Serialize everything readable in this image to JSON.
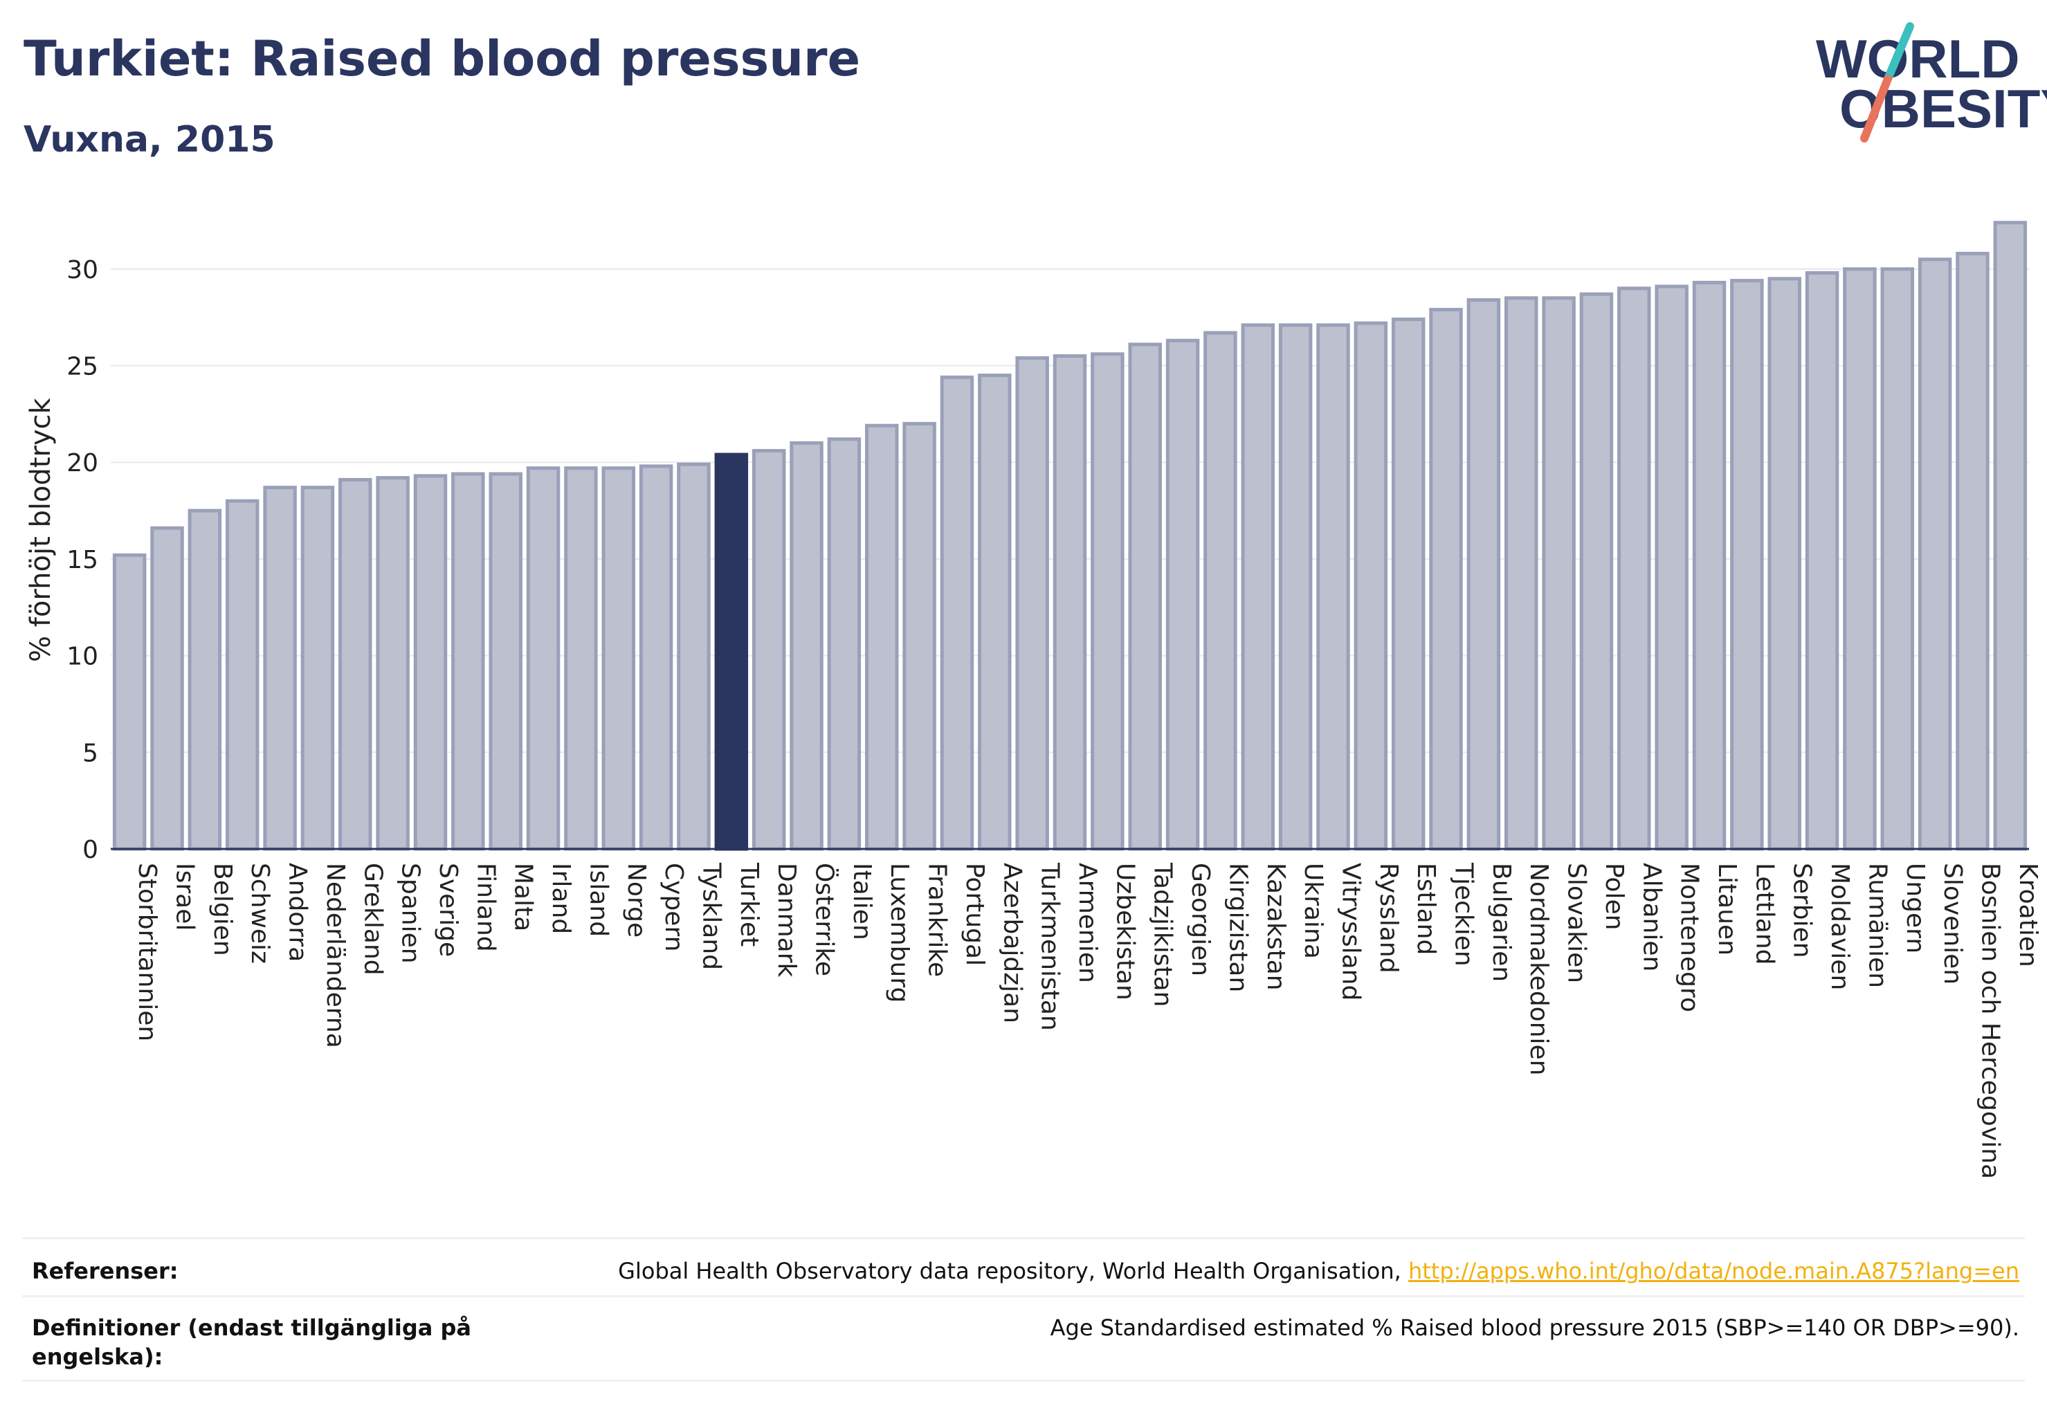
{
  "header": {
    "title": "Turkiet: Raised blood pressure",
    "subtitle": "Vuxna, 2015"
  },
  "logo": {
    "line1": "WORLD",
    "line2": "OBESITY"
  },
  "colors": {
    "highlight": "#2a3560",
    "bar_fill": "#bcc0cf",
    "bar_stroke": "#9aa0b8",
    "grid": "#e6e8ee",
    "logo_slash_top": "#3bbfbf",
    "logo_slash_bottom": "#e9735c",
    "link": "#f2b10e"
  },
  "chart_data": {
    "type": "bar",
    "ylabel": "% förhöjt blodtryck",
    "ylim": [
      0,
      33
    ],
    "yticks": [
      0,
      5,
      10,
      15,
      20,
      25,
      30
    ],
    "grid": true,
    "highlight": "Turkiet",
    "categories": [
      "Storbritannien",
      "Israel",
      "Belgien",
      "Schweiz",
      "Andorra",
      "Nederländerna",
      "Grekland",
      "Spanien",
      "Sverige",
      "Finland",
      "Malta",
      "Irland",
      "Island",
      "Norge",
      "Cypern",
      "Tyskland",
      "Turkiet",
      "Danmark",
      "Österrike",
      "Italien",
      "Luxemburg",
      "Frankrike",
      "Portugal",
      "Azerbajdzjan",
      "Turkmenistan",
      "Armenien",
      "Uzbekistan",
      "Tadzjikistan",
      "Georgien",
      "Kirgizistan",
      "Kazakstan",
      "Ukraina",
      "Vitryssland",
      "Ryssland",
      "Estland",
      "Tjeckien",
      "Bulgarien",
      "Nordmakedonien",
      "Slovakien",
      "Polen",
      "Albanien",
      "Montenegro",
      "Litauen",
      "Lettland",
      "Serbien",
      "Moldavien",
      "Rumänien",
      "Ungern",
      "Slovenien",
      "Bosnien och Hercegovina",
      "Kroatien"
    ],
    "values": [
      15.2,
      16.6,
      17.5,
      18.0,
      18.7,
      18.7,
      19.1,
      19.2,
      19.3,
      19.4,
      19.4,
      19.7,
      19.7,
      19.7,
      19.8,
      19.9,
      20.4,
      20.6,
      21.0,
      21.2,
      21.9,
      22.0,
      24.4,
      24.5,
      25.4,
      25.5,
      25.6,
      26.1,
      26.3,
      26.7,
      27.1,
      27.1,
      27.1,
      27.2,
      27.4,
      27.9,
      28.4,
      28.5,
      28.5,
      28.7,
      29.0,
      29.1,
      29.3,
      29.4,
      29.5,
      29.8,
      30.0,
      30.0,
      30.5,
      30.8,
      32.4
    ]
  },
  "references": {
    "ref_label": "Referenser:",
    "ref_text": "Global Health Observatory data repository, World Health Organisation, ",
    "ref_link": "http://apps.who.int/gho/data/node.main.A875?lang=en",
    "def_label": "Definitioner (endast tillgängliga på engelska):",
    "def_text": "Age Standardised estimated % Raised blood pressure 2015 (SBP>=140 OR DBP>=90)."
  }
}
